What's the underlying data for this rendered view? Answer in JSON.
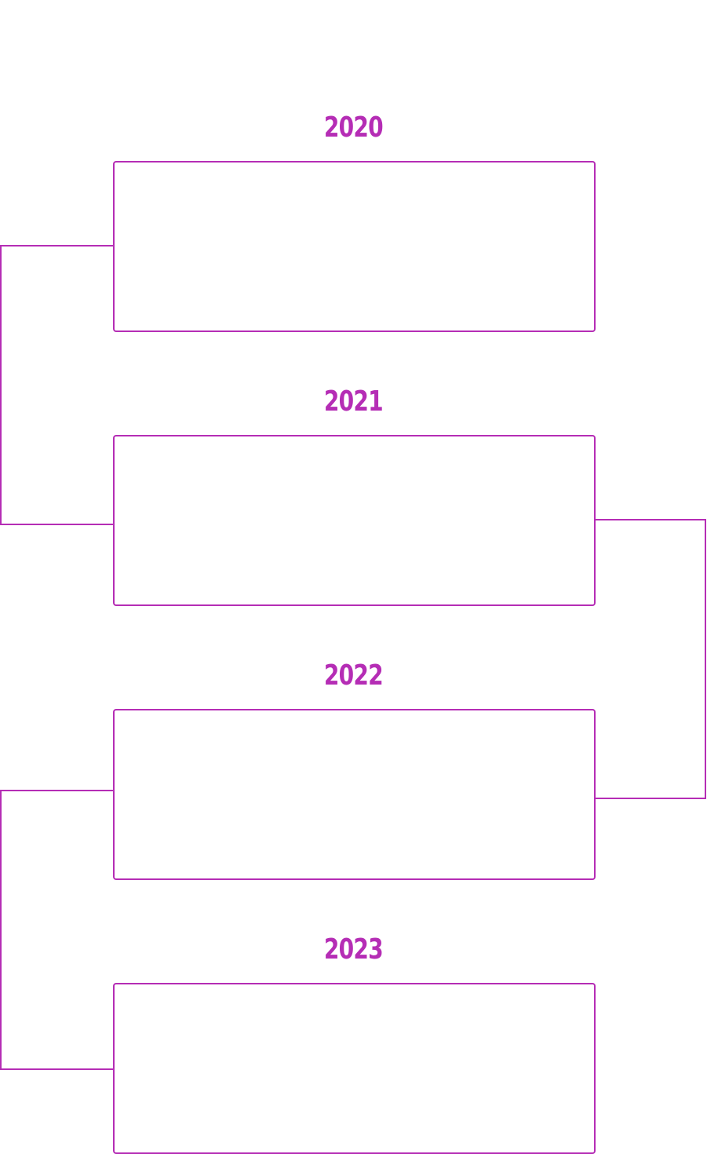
{
  "accent_color": "#b52db5",
  "timeline": [
    {
      "year": "2020"
    },
    {
      "year": "2021"
    },
    {
      "year": "2022"
    },
    {
      "year": "2023"
    }
  ]
}
